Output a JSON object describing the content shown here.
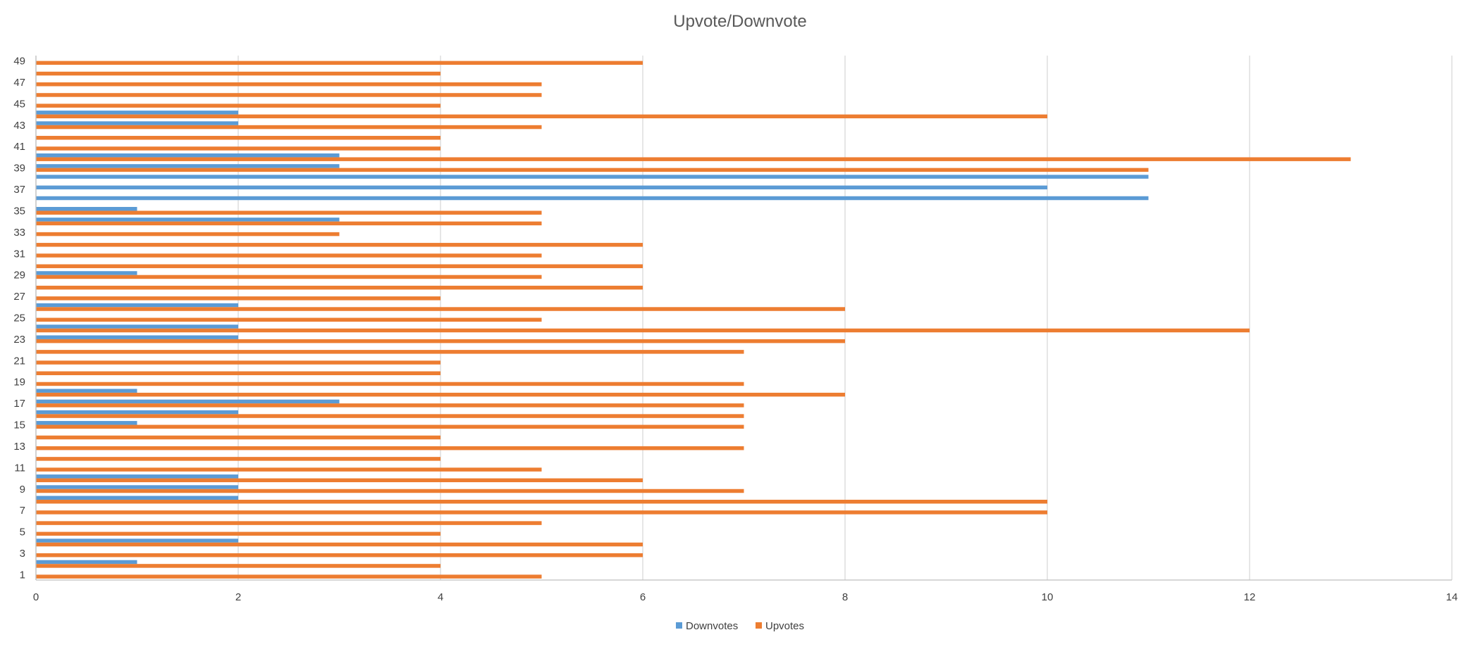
{
  "chart_data": {
    "type": "bar",
    "orientation": "horizontal",
    "title": "Upvote/Downvote",
    "xlabel": "",
    "ylabel": "",
    "xlim": [
      0,
      14
    ],
    "x_ticks": [
      "0",
      "2",
      "4",
      "6",
      "8",
      "10",
      "12",
      "14"
    ],
    "categories": [
      "1",
      "2",
      "3",
      "4",
      "5",
      "6",
      "7",
      "8",
      "9",
      "10",
      "11",
      "12",
      "13",
      "14",
      "15",
      "16",
      "17",
      "18",
      "19",
      "20",
      "21",
      "22",
      "23",
      "24",
      "25",
      "26",
      "27",
      "28",
      "29",
      "30",
      "31",
      "32",
      "33",
      "34",
      "35",
      "36",
      "37",
      "38",
      "39",
      "40",
      "41",
      "42",
      "43",
      "44",
      "45",
      "46",
      "47",
      "48",
      "49"
    ],
    "y_tick_labels": [
      "1",
      "3",
      "5",
      "7",
      "9",
      "11",
      "13",
      "15",
      "17",
      "19",
      "21",
      "23",
      "25",
      "27",
      "29",
      "31",
      "33",
      "35",
      "37",
      "39",
      "41",
      "43",
      "45",
      "47",
      "49"
    ],
    "grid": true,
    "legend_position": "bottom",
    "series": [
      {
        "name": "Downvotes",
        "color": "#5b9bd5",
        "values": [
          0,
          1,
          0,
          2,
          0,
          0,
          0,
          2,
          2,
          2,
          0,
          0,
          0,
          0,
          1,
          2,
          3,
          1,
          0,
          0,
          0,
          0,
          2,
          2,
          0,
          2,
          0,
          0,
          1,
          0,
          0,
          0,
          0,
          3,
          1,
          11,
          10,
          11,
          3,
          3,
          0,
          0,
          2,
          2,
          0,
          0,
          0,
          0,
          0
        ]
      },
      {
        "name": "Upvotes",
        "color": "#ed7d31",
        "values": [
          5,
          4,
          6,
          6,
          4,
          5,
          10,
          10,
          7,
          6,
          5,
          4,
          7,
          4,
          7,
          7,
          7,
          8,
          7,
          4,
          4,
          7,
          8,
          12,
          5,
          8,
          4,
          6,
          5,
          6,
          5,
          6,
          3,
          5,
          5,
          0,
          0,
          0,
          11,
          13,
          4,
          4,
          5,
          10,
          4,
          5,
          5,
          4,
          6
        ]
      }
    ]
  }
}
